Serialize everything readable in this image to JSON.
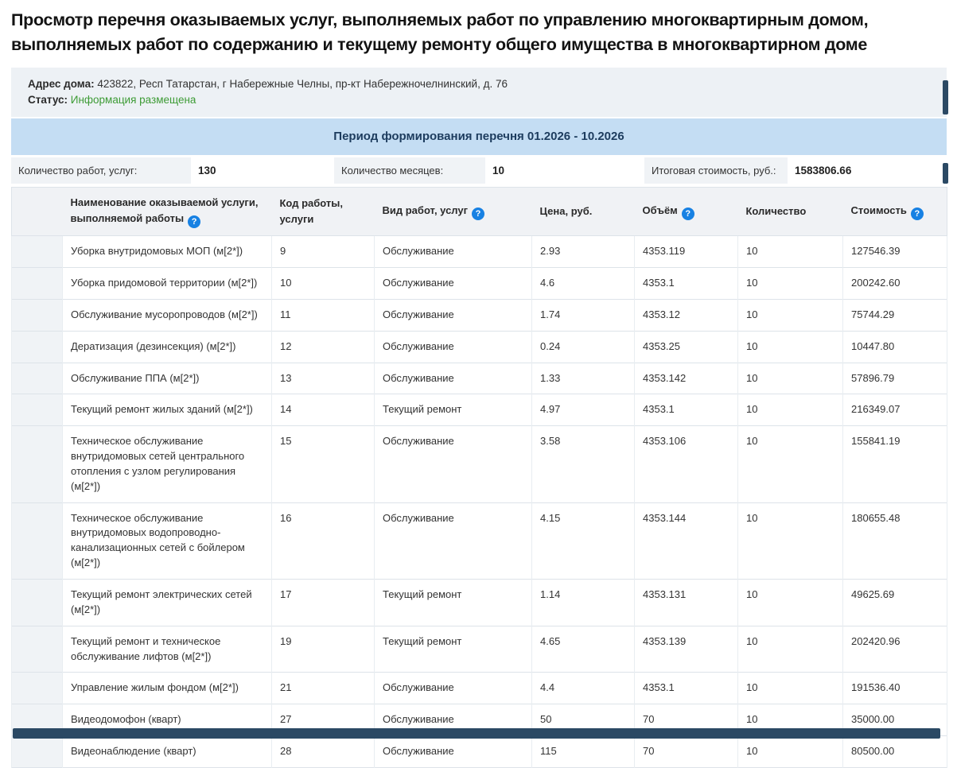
{
  "title": {
    "line1": "Просмотр перечня оказываемых услуг, выполняемых работ по управлению многоквартирным домом,",
    "line2": "выполняемых работ по содержанию и текущему ремонту общего имущества в многоквартирном доме"
  },
  "info": {
    "address_label": "Адрес дома:",
    "address_value": " 423822, Респ Татарстан, г Набережные Челны, пр-кт Набережночелнинский, д. 76",
    "status_label": "Статус:",
    "status_value": " Информация размещена",
    "status_color": "#3d9b35"
  },
  "period": {
    "text": "Период формирования перечня 01.2026 - 10.2026",
    "background": "#c4ddf3"
  },
  "summary": {
    "items": [
      {
        "label": "Количество работ, услуг:",
        "value": "130"
      },
      {
        "label": "Количество месяцев:",
        "value": "10"
      },
      {
        "label": "Итоговая стоимость, руб.:",
        "value": "1583806.66"
      }
    ]
  },
  "table": {
    "help_glyph": "?",
    "help_color": "#1781e3",
    "columns": [
      {
        "label": "",
        "help": false
      },
      {
        "label": "Наименование оказываемой услуги, выполняемой работы",
        "help": true
      },
      {
        "label": "Код работы, услуги",
        "help": false
      },
      {
        "label": "Вид работ, услуг",
        "help": true
      },
      {
        "label": "Цена, руб.",
        "help": false
      },
      {
        "label": "Объём",
        "help": true
      },
      {
        "label": "Количество",
        "help": false
      },
      {
        "label": "Стоимость",
        "help": true
      }
    ],
    "rows": [
      {
        "name": "Уборка внутридомовых МОП (м[2*])",
        "code": "9",
        "type": "Обслуживание",
        "price": "2.93",
        "volume": "4353.119",
        "quantity": "10",
        "cost": "127546.39"
      },
      {
        "name": "Уборка придомовой территории (м[2*])",
        "code": "10",
        "type": "Обслуживание",
        "price": "4.6",
        "volume": "4353.1",
        "quantity": "10",
        "cost": "200242.60"
      },
      {
        "name": "Обслуживание мусоропроводов (м[2*])",
        "code": "11",
        "type": "Обслуживание",
        "price": "1.74",
        "volume": "4353.12",
        "quantity": "10",
        "cost": "75744.29"
      },
      {
        "name": "Дератизация (дезинсекция) (м[2*])",
        "code": "12",
        "type": "Обслуживание",
        "price": "0.24",
        "volume": "4353.25",
        "quantity": "10",
        "cost": "10447.80"
      },
      {
        "name": "Обслуживание ППА (м[2*])",
        "code": "13",
        "type": "Обслуживание",
        "price": "1.33",
        "volume": "4353.142",
        "quantity": "10",
        "cost": "57896.79"
      },
      {
        "name": "Текущий ремонт жилых зданий (м[2*])",
        "code": "14",
        "type": "Текущий ремонт",
        "price": "4.97",
        "volume": "4353.1",
        "quantity": "10",
        "cost": "216349.07"
      },
      {
        "name": "Техническое обслуживание внутридомовых сетей центрального отопления с узлом регулирования (м[2*])",
        "code": "15",
        "type": "Обслуживание",
        "price": "3.58",
        "volume": "4353.106",
        "quantity": "10",
        "cost": "155841.19"
      },
      {
        "name": "Техническое обслуживание внутридомовых водопроводно-канализационных сетей с бойлером (м[2*])",
        "code": "16",
        "type": "Обслуживание",
        "price": "4.15",
        "volume": "4353.144",
        "quantity": "10",
        "cost": "180655.48"
      },
      {
        "name": "Текущий ремонт электрических сетей (м[2*])",
        "code": "17",
        "type": "Текущий ремонт",
        "price": "1.14",
        "volume": "4353.131",
        "quantity": "10",
        "cost": "49625.69"
      },
      {
        "name": "Текущий ремонт и техническое обслуживание лифтов (м[2*])",
        "code": "19",
        "type": "Текущий ремонт",
        "price": "4.65",
        "volume": "4353.139",
        "quantity": "10",
        "cost": "202420.96"
      },
      {
        "name": "Управление жилым фондом (м[2*])",
        "code": "21",
        "type": "Обслуживание",
        "price": "4.4",
        "volume": "4353.1",
        "quantity": "10",
        "cost": "191536.40"
      },
      {
        "name": "Видеодомофон (кварт)",
        "code": "27",
        "type": "Обслуживание",
        "price": "50",
        "volume": "70",
        "quantity": "10",
        "cost": "35000.00"
      },
      {
        "name": "Видеонаблюдение (кварт)",
        "code": "28",
        "type": "Обслуживание",
        "price": "115",
        "volume": "70",
        "quantity": "10",
        "cost": "80500.00"
      }
    ]
  }
}
